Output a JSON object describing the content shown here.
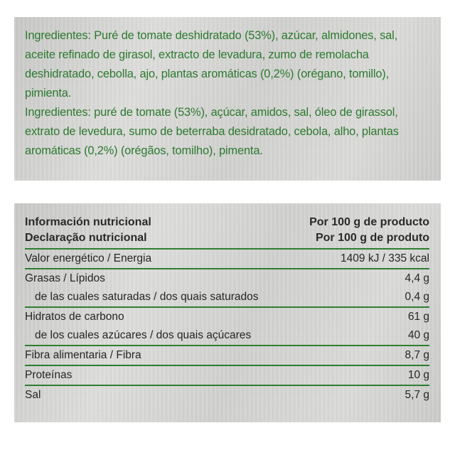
{
  "ingredients": {
    "es": "Ingredientes: Puré de tomate deshidratado (53%), azúcar, almidones, sal, aceite refinado de girasol, extracto de levadura, zumo de remolacha deshidratado, cebolla, ajo, plantas aromáticas (0,2%) (orégano, tomillo), pimienta.",
    "pt": "Ingredientes: puré de tomate (53%), açúcar, amidos, sal, óleo de girassol, extrato de levedura, sumo de beterraba desidratado, cebola, alho, plantas aromáticas (0,2%) (orégãos, tomilho), pimenta."
  },
  "nutrition": {
    "header": {
      "title_es": "Información nutricional",
      "title_pt": "Declaração nutricional",
      "per_es": "Por 100 g de producto",
      "per_pt": "Por 100 g de produto"
    },
    "rows": [
      {
        "label": "Valor energético / Energia",
        "value": "1409 kJ / 335 kcal"
      },
      {
        "label": "Grasas / Lípidos",
        "value": "4,4 g"
      },
      {
        "label": "de las cuales saturadas / dos quais saturados",
        "value": "0,4 g"
      },
      {
        "label": "Hidratos de carbono",
        "value": "61 g"
      },
      {
        "label": "de los cuales azúcares / dos quais açúcares",
        "value": "40 g"
      },
      {
        "label": "Fibra alimentaria / Fibra",
        "value": "8,7 g"
      },
      {
        "label": "Proteínas",
        "value": "10 g"
      },
      {
        "label": "Sal",
        "value": "5,7 g"
      }
    ]
  },
  "colors": {
    "ingredient_text": "#2d7a2f",
    "rule_green": "#2f7d32",
    "panel_grey": "#d3d3d1"
  }
}
